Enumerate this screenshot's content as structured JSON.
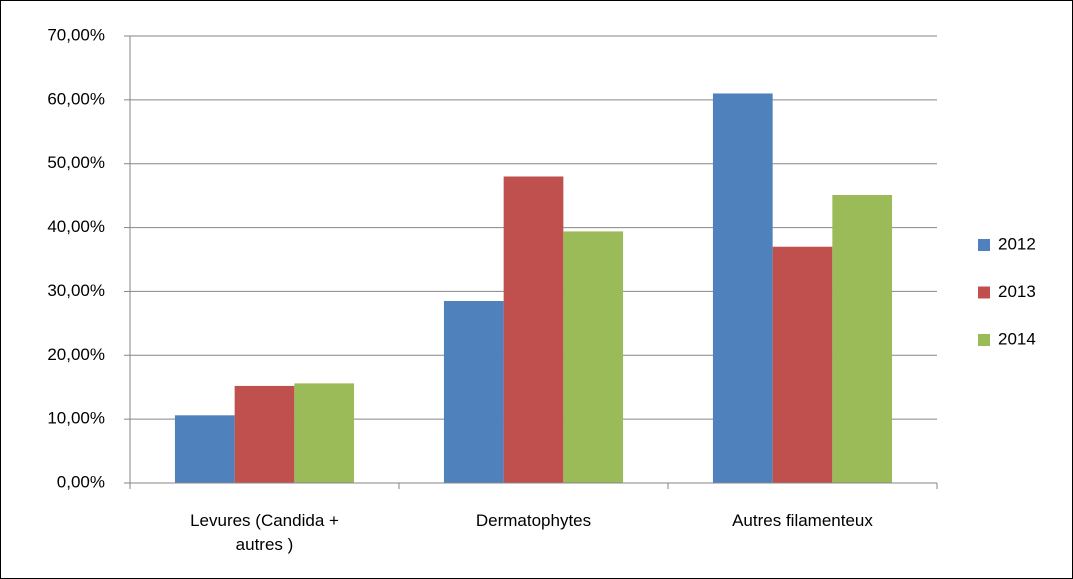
{
  "chart_data": {
    "type": "bar",
    "categories": [
      "Levures (Candida + autres )",
      "Dermatophytes",
      "Autres filamenteux"
    ],
    "series": [
      {
        "name": "2012",
        "color": "#4f81bd",
        "values": [
          10.6,
          28.5,
          61.0
        ]
      },
      {
        "name": "2013",
        "color": "#c0504d",
        "values": [
          15.2,
          48.0,
          37.0
        ]
      },
      {
        "name": "2014",
        "color": "#9bbb59",
        "values": [
          15.6,
          39.4,
          45.1
        ]
      }
    ],
    "ylim": [
      0,
      70
    ],
    "yticks": [
      {
        "value": 0,
        "label": "0,00%"
      },
      {
        "value": 10,
        "label": "10,00%"
      },
      {
        "value": 20,
        "label": "20,00%"
      },
      {
        "value": 30,
        "label": "30,00%"
      },
      {
        "value": 40,
        "label": "40,00%"
      },
      {
        "value": 50,
        "label": "50,00%"
      },
      {
        "value": 60,
        "label": "60,00%"
      },
      {
        "value": 70,
        "label": "70,00%"
      }
    ],
    "grid": true,
    "legend": "right"
  }
}
